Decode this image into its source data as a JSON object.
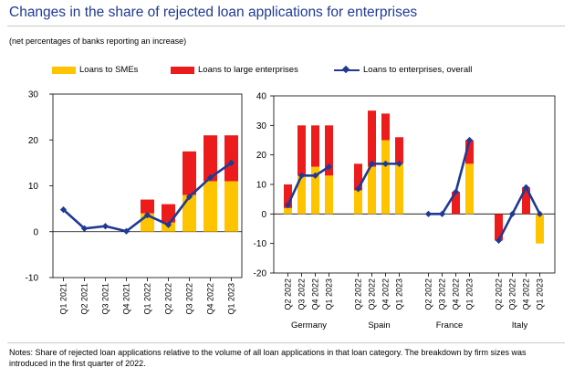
{
  "header": {
    "title": "Changes in the share of rejected loan applications for enterprises",
    "subtitle": "(net percentages of banks reporting an increase)"
  },
  "legend": {
    "sme": "Loans to SMEs",
    "large": "Loans to large enterprises",
    "overall": "Loans to enterprises, overall"
  },
  "colors": {
    "sme": "#ffc400",
    "large": "#ed1c1c",
    "overall": "#1f3a93",
    "title": "#1f3a93"
  },
  "notes": "Notes: Share of rejected loan applications relative to the volume of all loan applications in that loan category. The breakdown by firm sizes was introduced in the first quarter of 2022.",
  "chart_data": [
    {
      "type": "bar",
      "stacked": true,
      "ylim": [
        -10,
        30
      ],
      "yticks": [
        -10,
        0,
        10,
        20,
        30
      ],
      "categories": [
        "Q1 2021",
        "Q2 2021",
        "Q3 2021",
        "Q4 2021",
        "Q1 2022",
        "Q2 2022",
        "Q3 2022",
        "Q4 2022",
        "Q1 2023"
      ],
      "series": [
        {
          "name": "Loans to SMEs",
          "kind": "bar",
          "values": [
            null,
            null,
            null,
            null,
            4,
            2,
            8,
            11,
            11
          ]
        },
        {
          "name": "Loans to large enterprises",
          "kind": "bar",
          "values": [
            null,
            null,
            null,
            null,
            3,
            4,
            9.5,
            10,
            10
          ]
        },
        {
          "name": "Loans to enterprises, overall",
          "kind": "line",
          "values": [
            4.8,
            0.7,
            1.2,
            0.1,
            3.6,
            1.5,
            7.6,
            11.8,
            15
          ]
        }
      ],
      "grid": false
    },
    {
      "type": "bar",
      "stacked": true,
      "ylim": [
        -20,
        40
      ],
      "yticks": [
        -20,
        -10,
        0,
        10,
        20,
        30,
        40
      ],
      "groups": [
        {
          "name": "Germany",
          "categories": [
            "Q2 2022",
            "Q3 2022",
            "Q4 2022",
            "Q1 2023"
          ],
          "sme": [
            2,
            13,
            16,
            13
          ],
          "large": [
            8,
            17,
            14,
            17
          ],
          "overall": [
            3,
            13,
            13,
            16
          ]
        },
        {
          "name": "Spain",
          "categories": [
            "Q2 2022",
            "Q3 2022",
            "Q4 2022",
            "Q1 2023"
          ],
          "sme": [
            8,
            16,
            25,
            17
          ],
          "large": [
            9,
            19,
            9,
            9
          ],
          "overall": [
            8.5,
            17,
            17,
            17
          ]
        },
        {
          "name": "France",
          "categories": [
            "Q2 2022",
            "Q3 2022",
            "Q4 2022",
            "Q1 2023"
          ],
          "sme": [
            0,
            0,
            0,
            17
          ],
          "large": [
            0,
            0,
            7.5,
            8
          ],
          "overall": [
            0,
            0,
            7.5,
            25
          ]
        },
        {
          "name": "Italy",
          "categories": [
            "Q2 2022",
            "Q3 2022",
            "Q4 2022",
            "Q1 2023"
          ],
          "sme": [
            0,
            0,
            0,
            -10
          ],
          "large": [
            -9,
            0,
            9,
            0
          ],
          "overall": [
            -9,
            0,
            9,
            0
          ]
        }
      ],
      "grid": false
    }
  ]
}
